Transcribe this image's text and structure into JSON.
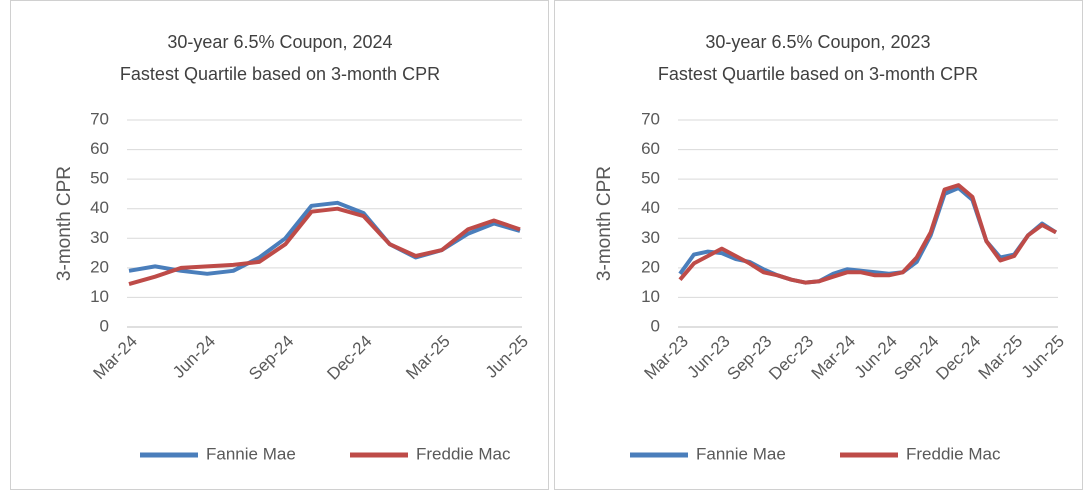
{
  "chart_data": [
    {
      "type": "line",
      "title": "30-year 6.5% Coupon, 2024",
      "subtitle": "Fastest Quartile based on 3-month CPR",
      "y_label": "3-month CPR",
      "categories": [
        "Mar-24",
        null,
        null,
        "Jun-24",
        null,
        null,
        "Sep-24",
        null,
        null,
        "Dec-24",
        null,
        null,
        "Mar-25",
        null,
        null,
        "Jun-25"
      ],
      "series": [
        {
          "name": "Fannie Mae",
          "color": "#4a7ebb",
          "values": [
            19,
            20.5,
            19,
            18,
            19,
            23.5,
            30,
            41,
            42,
            38.5,
            28,
            23.5,
            26,
            31.5,
            35,
            32.5
          ]
        },
        {
          "name": "Freddie Mac",
          "color": "#be4b48",
          "values": [
            14.5,
            17,
            20,
            20.5,
            21,
            22,
            28,
            39,
            40,
            37.5,
            28,
            24,
            26,
            33,
            36,
            33
          ]
        }
      ],
      "ylim": [
        0,
        70
      ],
      "yticks": [
        0,
        10,
        20,
        30,
        40,
        50,
        60,
        70
      ],
      "grid": true,
      "legend": "bottom"
    },
    {
      "type": "line",
      "title": "30-year 6.5% Coupon, 2023",
      "subtitle": "Fastest Quartile based on 3-month CPR",
      "y_label": "3-month CPR",
      "categories": [
        "Mar-23",
        null,
        null,
        "Jun-23",
        null,
        null,
        "Sep-23",
        null,
        null,
        "Dec-23",
        null,
        null,
        "Mar-24",
        null,
        null,
        "Jun-24",
        null,
        null,
        "Sep-24",
        null,
        null,
        "Dec-24",
        null,
        null,
        "Mar-25",
        null,
        null,
        "Jun-25"
      ],
      "series": [
        {
          "name": "Fannie Mae",
          "color": "#4a7ebb",
          "values": [
            18,
            24.5,
            25.5,
            25,
            23,
            22,
            19.5,
            17.5,
            16,
            15,
            15.5,
            18,
            19.5,
            19,
            18.5,
            18,
            18.5,
            22,
            31,
            45,
            47,
            43,
            29,
            23.5,
            24.5,
            31,
            35,
            32
          ]
        },
        {
          "name": "Freddie Mac",
          "color": "#be4b48",
          "values": [
            16,
            21.5,
            24,
            26.5,
            24,
            21.5,
            18.5,
            17.5,
            16,
            15,
            15.5,
            17,
            18.5,
            18.5,
            17.5,
            17.5,
            18.5,
            23.5,
            32,
            46.5,
            48,
            44,
            29,
            22.5,
            24,
            31,
            34.5,
            32
          ]
        }
      ],
      "ylim": [
        0,
        70
      ],
      "yticks": [
        0,
        10,
        20,
        30,
        40,
        50,
        60,
        70
      ],
      "grid": true,
      "legend": "bottom"
    }
  ]
}
